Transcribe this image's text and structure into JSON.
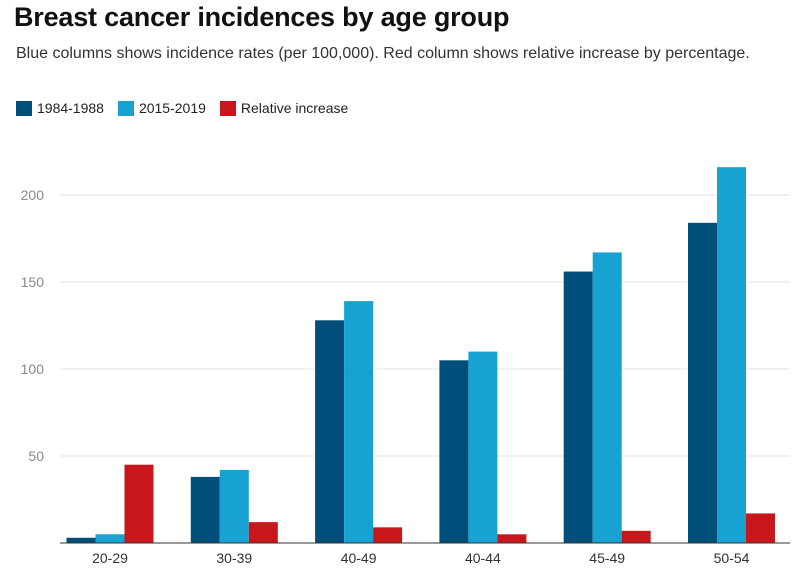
{
  "chart_data": {
    "type": "bar",
    "title": "Breast cancer incidences by age group",
    "subtitle": "Blue columns shows incidence rates (per 100,000). Red column shows relative increase by percentage.",
    "categories": [
      "20-29",
      "30-39",
      "40-49",
      "40-44",
      "45-49",
      "50-54"
    ],
    "series": [
      {
        "name": "1984-1988",
        "color": "#004e7a",
        "values": [
          3,
          38,
          128,
          105,
          156,
          184
        ]
      },
      {
        "name": "2015-2019",
        "color": "#17a2d1",
        "values": [
          5,
          42,
          139,
          110,
          167,
          216
        ]
      },
      {
        "name": "Relative increase",
        "color": "#c8161d",
        "values": [
          45,
          12,
          9,
          5,
          7,
          17
        ]
      }
    ],
    "yticks": [
      50,
      100,
      150,
      200
    ],
    "ylim": [
      0,
      225
    ],
    "grid": true,
    "legend_position": "top-left"
  }
}
